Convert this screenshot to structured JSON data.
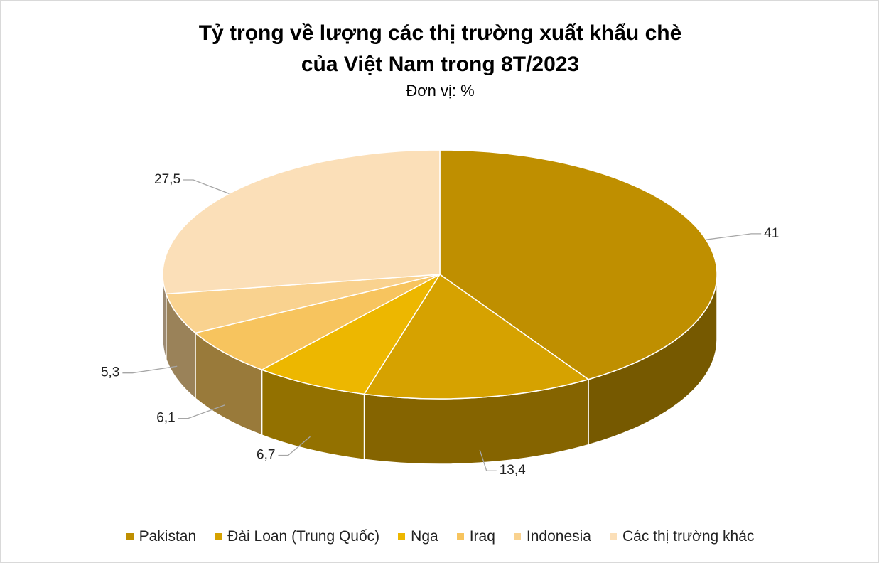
{
  "chart_data": {
    "type": "pie3d",
    "title": "Tỷ trọng về lượng các thị trường xuất khẩu chè của Việt Nam trong 8T/2023",
    "subtitle": "Đơn vị: %",
    "categories": [
      "Pakistan",
      "Đài Loan (Trung Quốc)",
      "Nga",
      "Iraq",
      "Indonesia",
      "Các thị trường khác"
    ],
    "values": [
      41,
      13.4,
      6.7,
      6.1,
      5.3,
      27.5
    ],
    "value_labels": [
      "41",
      "13,4",
      "6,7",
      "6,1",
      "5,3",
      "27,5"
    ],
    "colors": [
      "#bf8f00",
      "#d6a200",
      "#edb700",
      "#f7c45e",
      "#f9d28f",
      "#fbdfb8"
    ],
    "legend": "bottom"
  }
}
